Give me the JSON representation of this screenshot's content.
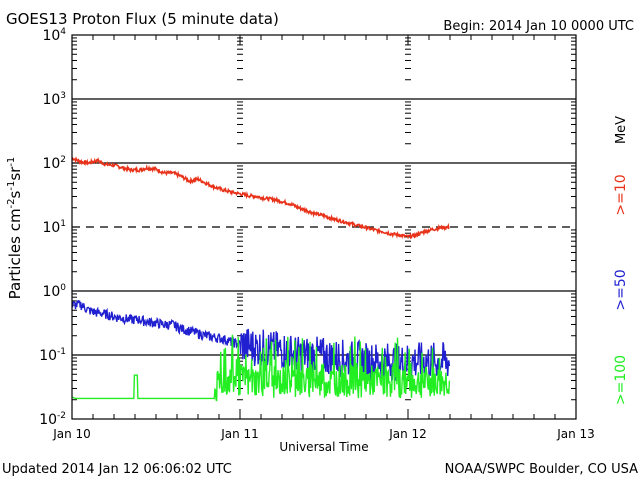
{
  "chart_data": {
    "type": "line",
    "title": "GOES13 Proton Flux (5 minute data)",
    "begin_label": "Begin: 2014 Jan 10 0000 UTC",
    "xlabel": "Universal Time",
    "ylabel": "Particles cm⁻²s⁻¹sr⁻¹",
    "ylabel_parts": {
      "base": "Particles cm",
      "sup1": "-2",
      "mid1": "s",
      "sup2": "-1",
      "mid2": "sr",
      "sup3": "-1"
    },
    "yscale": "log",
    "ylim": [
      0.01,
      10000
    ],
    "xlim_days": [
      0,
      3
    ],
    "x_ticks": [
      {
        "day": 0,
        "label": "Jan 10"
      },
      {
        "day": 1,
        "label": "Jan 11"
      },
      {
        "day": 2,
        "label": "Jan 12"
      },
      {
        "day": 3,
        "label": "Jan 13"
      }
    ],
    "y_ticks": [
      {
        "exp": 4,
        "base": "10",
        "sup": "4"
      },
      {
        "exp": 3,
        "base": "10",
        "sup": "3"
      },
      {
        "exp": 2,
        "base": "10",
        "sup": "2"
      },
      {
        "exp": 1,
        "base": "10",
        "sup": "1"
      },
      {
        "exp": 0,
        "base": "10",
        "sup": "0"
      },
      {
        "exp": -1,
        "base": "10",
        "sup": "-1"
      },
      {
        "exp": -2,
        "base": "10",
        "sup": "-2"
      }
    ],
    "threshold_line": {
      "value": 10,
      "style": "dashed"
    },
    "grid": "solid at decades",
    "units_label": "MeV",
    "legend": "right",
    "series": [
      {
        "name": ">=10",
        "color": "#e8321a",
        "x_days": [
          0.0,
          0.05,
          0.1,
          0.15,
          0.2,
          0.25,
          0.3,
          0.35,
          0.4,
          0.45,
          0.5,
          0.55,
          0.6,
          0.65,
          0.7,
          0.75,
          0.8,
          0.85,
          0.9,
          0.95,
          1.0,
          1.05,
          1.1,
          1.15,
          1.2,
          1.25,
          1.3,
          1.35,
          1.4,
          1.45,
          1.5,
          1.55,
          1.6,
          1.65,
          1.7,
          1.75,
          1.8,
          1.85,
          1.9,
          1.95,
          2.0,
          2.05,
          2.1,
          2.15,
          2.2,
          2.25
        ],
        "values": [
          120,
          105,
          100,
          110,
          95,
          92,
          85,
          78,
          78,
          84,
          80,
          70,
          70,
          62,
          52,
          56,
          48,
          42,
          38,
          35,
          33,
          31,
          30,
          28,
          27,
          25,
          23,
          20,
          18,
          16,
          15,
          13.5,
          12.5,
          11.5,
          10.5,
          9.8,
          9.0,
          8.5,
          7.8,
          7.5,
          7.0,
          7.5,
          8.5,
          9.2,
          9.8,
          10.0
        ]
      },
      {
        "name": ">=50",
        "color": "#2020d0",
        "x_days": [
          0.0,
          0.05,
          0.1,
          0.15,
          0.2,
          0.25,
          0.3,
          0.35,
          0.4,
          0.45,
          0.5,
          0.55,
          0.6,
          0.65,
          0.7,
          0.75,
          0.8,
          0.85,
          0.9,
          0.95,
          1.0,
          1.05,
          1.1,
          1.15,
          1.2,
          1.25,
          1.3,
          1.35,
          1.4,
          1.45,
          1.5,
          1.55,
          1.6,
          1.65,
          1.7,
          1.75,
          1.8,
          1.85,
          1.9,
          1.95,
          2.0,
          2.05,
          2.1,
          2.15,
          2.2,
          2.25
        ],
        "values": [
          0.6,
          0.62,
          0.5,
          0.46,
          0.44,
          0.4,
          0.38,
          0.36,
          0.36,
          0.33,
          0.32,
          0.3,
          0.3,
          0.26,
          0.24,
          0.22,
          0.2,
          0.19,
          0.18,
          0.16,
          0.15,
          0.14,
          0.13,
          0.13,
          0.12,
          0.12,
          0.11,
          0.1,
          0.1,
          0.1,
          0.095,
          0.09,
          0.09,
          0.085,
          0.085,
          0.08,
          0.08,
          0.08,
          0.08,
          0.075,
          0.08,
          0.08,
          0.08,
          0.08,
          0.08,
          0.08
        ]
      },
      {
        "name": ">=100",
        "color": "#22ee22",
        "x_days": [
          0.0,
          0.02,
          0.1,
          0.2,
          0.3,
          0.4,
          0.5,
          0.6,
          0.7,
          0.85,
          0.9,
          0.95,
          1.0,
          1.05,
          1.1,
          1.2,
          1.3,
          1.4,
          1.5,
          1.6,
          1.7,
          1.8,
          1.9,
          2.0,
          2.1,
          2.2,
          2.25
        ],
        "values": [
          0.022,
          0.021,
          0.021,
          0.021,
          0.021,
          0.021,
          0.021,
          0.021,
          0.021,
          0.021,
          0.03,
          0.03,
          0.03,
          0.028,
          0.03,
          0.028,
          0.03,
          0.028,
          0.028,
          0.03,
          0.028,
          0.03,
          0.028,
          0.028,
          0.028,
          0.028,
          0.03
        ]
      }
    ]
  },
  "footer": {
    "updated": "Updated 2014 Jan 12 06:06:02 UTC",
    "credit": "NOAA/SWPC Boulder, CO USA"
  }
}
